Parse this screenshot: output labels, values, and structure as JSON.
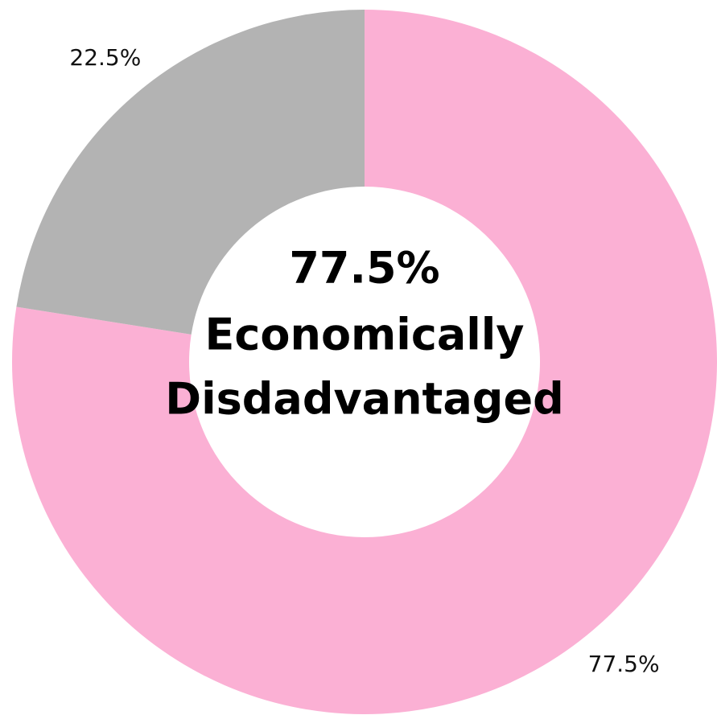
{
  "chart_data": {
    "type": "donut",
    "values": [
      77.5,
      22.5
    ],
    "value_labels": [
      "77.5%",
      "22.5%"
    ],
    "colors": [
      "#fbb0d4",
      "#b3b3b3"
    ],
    "center_text": [
      "77.5%",
      "Economically",
      "Disdadvantaged"
    ]
  }
}
